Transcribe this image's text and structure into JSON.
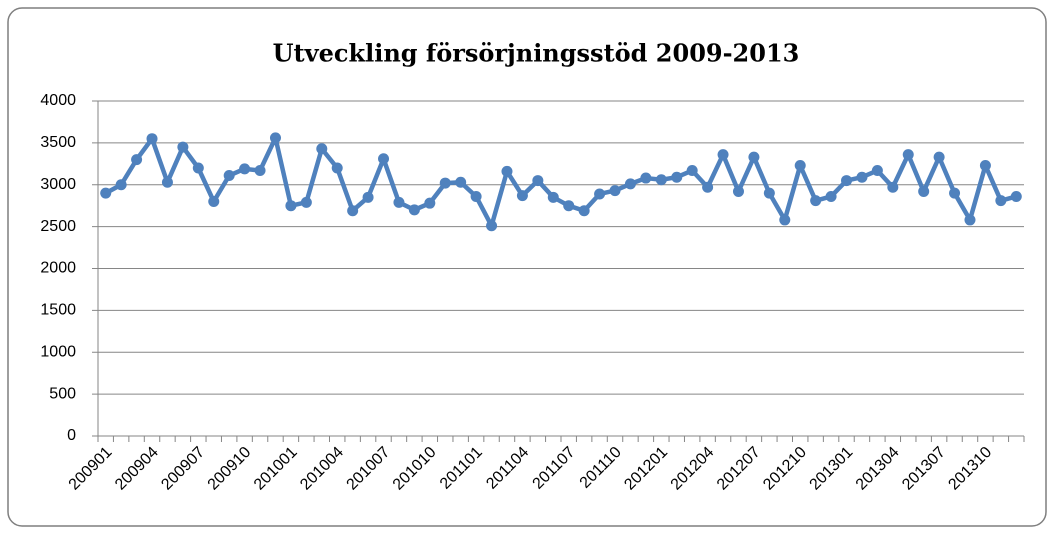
{
  "chart_data": {
    "type": "line",
    "title": "Utveckling försörjningsstöd 2009-2013",
    "categories": [
      "200901",
      null,
      null,
      "200904",
      null,
      null,
      "200907",
      null,
      null,
      "200910",
      null,
      null,
      "201001",
      null,
      null,
      "201004",
      null,
      null,
      "201007",
      null,
      null,
      "201010",
      null,
      null,
      "201101",
      null,
      null,
      "201104",
      null,
      null,
      "201107",
      null,
      null,
      "201110",
      null,
      null,
      "201201",
      null,
      null,
      "201204",
      null,
      null,
      "201207",
      null,
      null,
      "201210",
      null,
      null,
      "201301",
      null,
      null,
      "201304",
      null,
      null,
      "201307",
      null,
      null,
      "201310",
      null,
      null
    ],
    "series": [
      {
        "name": "Försörjningsstöd",
        "color": "#4f81bd",
        "values": [
          2900,
          3000,
          3300,
          3550,
          3030,
          3450,
          3200,
          2800,
          3110,
          3190,
          3170,
          3560,
          2750,
          2790,
          3430,
          3200,
          2690,
          2850,
          3310,
          2790,
          2700,
          2780,
          3020,
          3030,
          2860,
          2510,
          3160,
          2870,
          3050,
          2850,
          2750,
          2690,
          2890,
          2930,
          3010,
          3080,
          3060,
          3090,
          3170,
          2970,
          3360,
          2920,
          3330,
          2900,
          2580,
          3230,
          2810,
          2860,
          3050,
          3090,
          3170,
          2970,
          3360,
          2920,
          3330,
          2900,
          2580,
          3230,
          2810,
          2860
        ]
      }
    ],
    "ylim": [
      0,
      4000
    ],
    "yticks": [
      0,
      500,
      1000,
      1500,
      2000,
      2500,
      3000,
      3500,
      4000
    ],
    "grid": true,
    "legend": false
  }
}
